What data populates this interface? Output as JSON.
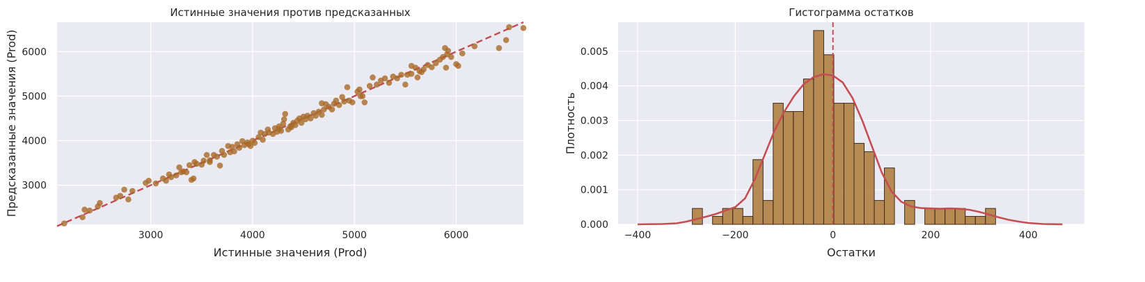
{
  "chart_data": [
    {
      "type": "scatter",
      "title": "Истинные значения против предсказанных",
      "xlabel": "Истинные значения (Prod)",
      "ylabel": "Предсказанные значения (Prod)",
      "xlim": [
        2080,
        6660
      ],
      "ylim": [
        2120,
        6660
      ],
      "xticks": [
        3000,
        4000,
        5000,
        6000
      ],
      "yticks": [
        3000,
        4000,
        5000,
        6000
      ],
      "grid": true,
      "background": "#eaeaf2",
      "point_color": "#a86a28",
      "reference_line": {
        "from": [
          2080,
          2080
        ],
        "to": [
          6660,
          6660
        ],
        "color": "#c44e52",
        "style": "dashed"
      },
      "points": [
        [
          2150,
          2140
        ],
        [
          2330,
          2280
        ],
        [
          2350,
          2450
        ],
        [
          2400,
          2430
        ],
        [
          2480,
          2520
        ],
        [
          2500,
          2600
        ],
        [
          2660,
          2720
        ],
        [
          2700,
          2760
        ],
        [
          2740,
          2900
        ],
        [
          2780,
          2680
        ],
        [
          2820,
          2870
        ],
        [
          2950,
          3050
        ],
        [
          2980,
          3100
        ],
        [
          3050,
          3040
        ],
        [
          3120,
          3150
        ],
        [
          3150,
          3100
        ],
        [
          3180,
          3240
        ],
        [
          3200,
          3180
        ],
        [
          3250,
          3220
        ],
        [
          3280,
          3400
        ],
        [
          3320,
          3310
        ],
        [
          3350,
          3290
        ],
        [
          3380,
          3450
        ],
        [
          3400,
          3120
        ],
        [
          3420,
          3150
        ],
        [
          3430,
          3520
        ],
        [
          3450,
          3480
        ],
        [
          3500,
          3460
        ],
        [
          3520,
          3550
        ],
        [
          3550,
          3680
        ],
        [
          3580,
          3520
        ],
        [
          3620,
          3680
        ],
        [
          3650,
          3640
        ],
        [
          3680,
          3440
        ],
        [
          3700,
          3770
        ],
        [
          3720,
          3680
        ],
        [
          3760,
          3880
        ],
        [
          3780,
          3740
        ],
        [
          3800,
          3860
        ],
        [
          3820,
          3760
        ],
        [
          3850,
          3920
        ],
        [
          3870,
          3840
        ],
        [
          3900,
          3990
        ],
        [
          3920,
          3900
        ],
        [
          3950,
          3960
        ],
        [
          3980,
          3880
        ],
        [
          4000,
          4000
        ],
        [
          4020,
          3950
        ],
        [
          4060,
          4080
        ],
        [
          4080,
          4180
        ],
        [
          4100,
          4020
        ],
        [
          4120,
          4150
        ],
        [
          4150,
          4250
        ],
        [
          4160,
          4180
        ],
        [
          4200,
          4150
        ],
        [
          4220,
          4280
        ],
        [
          4240,
          4200
        ],
        [
          4260,
          4320
        ],
        [
          4280,
          4220
        ],
        [
          4300,
          4380
        ],
        [
          4310,
          4480
        ],
        [
          4320,
          4600
        ],
        [
          4350,
          4250
        ],
        [
          4370,
          4320
        ],
        [
          4400,
          4400
        ],
        [
          4420,
          4350
        ],
        [
          4440,
          4450
        ],
        [
          4460,
          4500
        ],
        [
          4480,
          4400
        ],
        [
          4500,
          4540
        ],
        [
          4520,
          4480
        ],
        [
          4540,
          4560
        ],
        [
          4570,
          4500
        ],
        [
          4600,
          4620
        ],
        [
          4620,
          4560
        ],
        [
          4650,
          4650
        ],
        [
          4680,
          4580
        ],
        [
          4700,
          4700
        ],
        [
          4720,
          4820
        ],
        [
          4750,
          4760
        ],
        [
          4780,
          4700
        ],
        [
          4800,
          4830
        ],
        [
          4820,
          4900
        ],
        [
          4850,
          4800
        ],
        [
          4880,
          4980
        ],
        [
          4900,
          4880
        ],
        [
          4930,
          5200
        ],
        [
          4950,
          4900
        ],
        [
          4980,
          4860
        ],
        [
          5030,
          5100
        ],
        [
          5050,
          5150
        ],
        [
          5080,
          5000
        ],
        [
          5100,
          4860
        ],
        [
          5150,
          5230
        ],
        [
          5180,
          5420
        ],
        [
          5220,
          5260
        ],
        [
          5260,
          5350
        ],
        [
          5300,
          5400
        ],
        [
          5340,
          5300
        ],
        [
          5380,
          5440
        ],
        [
          5420,
          5400
        ],
        [
          5460,
          5480
        ],
        [
          5500,
          5260
        ],
        [
          5520,
          5480
        ],
        [
          5560,
          5680
        ],
        [
          5600,
          5640
        ],
        [
          5620,
          5420
        ],
        [
          5640,
          5560
        ],
        [
          5680,
          5600
        ],
        [
          5720,
          5700
        ],
        [
          5760,
          5650
        ],
        [
          5800,
          5740
        ],
        [
          5840,
          5820
        ],
        [
          5870,
          5880
        ],
        [
          5890,
          6080
        ],
        [
          5900,
          5640
        ],
        [
          5910,
          5940
        ],
        [
          5920,
          6020
        ],
        [
          5950,
          5880
        ],
        [
          6000,
          5720
        ],
        [
          6020,
          5680
        ],
        [
          6060,
          5960
        ],
        [
          6180,
          6120
        ],
        [
          6420,
          6080
        ],
        [
          6490,
          6260
        ],
        [
          6520,
          6550
        ],
        [
          6660,
          6530
        ],
        [
          5060,
          5000
        ],
        [
          4680,
          4840
        ],
        [
          4260,
          4260
        ],
        [
          3960,
          3920
        ],
        [
          3580,
          3560
        ],
        [
          3300,
          3290
        ],
        [
          5560,
          5500
        ],
        [
          5660,
          5540
        ],
        [
          4380,
          4300
        ]
      ]
    },
    {
      "type": "histogram",
      "title": "Гистограмма остатков",
      "xlabel": "Остатки",
      "ylabel": "Плотность",
      "xlim": [
        -440,
        515
      ],
      "ylim": [
        0,
        0.00584
      ],
      "xticks": [
        -400,
        -200,
        0,
        200,
        400
      ],
      "yticks": [
        0.0,
        0.001,
        0.002,
        0.003,
        0.004,
        0.005
      ],
      "ytick_labels": [
        "0.000",
        "0.001",
        "0.002",
        "0.003",
        "0.004",
        "0.005"
      ],
      "grid": true,
      "background": "#eaeaf2",
      "bar_color": "#b08040",
      "kde_color": "#c44e52",
      "bin_start": -288,
      "bin_width": 20.7,
      "densities": [
        0.00046,
        0,
        0.00023,
        0.00046,
        0.00046,
        0.00023,
        0.00187,
        0.00069,
        0.0035,
        0.00326,
        0.00326,
        0.0042,
        0.0056,
        0.0049,
        0.0035,
        0.0035,
        0.00234,
        0.0021,
        0.00069,
        0.00163,
        0,
        0.00069,
        0,
        0.00046,
        0.00046,
        0.00046,
        0.00046,
        0.00023,
        0.00023,
        0.00046
      ],
      "vline": {
        "x": 0,
        "color": "#c44e52",
        "style": "dashed"
      },
      "kde": [
        [
          -400,
          0
        ],
        [
          -350,
          1e-05
        ],
        [
          -320,
          3e-05
        ],
        [
          -300,
          8e-05
        ],
        [
          -280,
          0.00015
        ],
        [
          -260,
          0.00022
        ],
        [
          -240,
          0.0003
        ],
        [
          -220,
          0.0004
        ],
        [
          -200,
          0.0005
        ],
        [
          -180,
          0.00075
        ],
        [
          -160,
          0.0013
        ],
        [
          -140,
          0.002
        ],
        [
          -120,
          0.0027
        ],
        [
          -100,
          0.00325
        ],
        [
          -80,
          0.0037
        ],
        [
          -60,
          0.00405
        ],
        [
          -40,
          0.00425
        ],
        [
          -20,
          0.00434
        ],
        [
          0,
          0.0043
        ],
        [
          20,
          0.0041
        ],
        [
          40,
          0.00365
        ],
        [
          60,
          0.003
        ],
        [
          80,
          0.00225
        ],
        [
          100,
          0.0015
        ],
        [
          120,
          0.00095
        ],
        [
          140,
          0.00065
        ],
        [
          160,
          0.00052
        ],
        [
          180,
          0.00047
        ],
        [
          200,
          0.00046
        ],
        [
          220,
          0.00045
        ],
        [
          240,
          0.00046
        ],
        [
          260,
          0.00045
        ],
        [
          280,
          0.00042
        ],
        [
          300,
          0.00036
        ],
        [
          320,
          0.00028
        ],
        [
          340,
          0.0002
        ],
        [
          360,
          0.00013
        ],
        [
          380,
          8e-05
        ],
        [
          400,
          4e-05
        ],
        [
          430,
          1e-05
        ],
        [
          470,
          0
        ]
      ]
    }
  ]
}
